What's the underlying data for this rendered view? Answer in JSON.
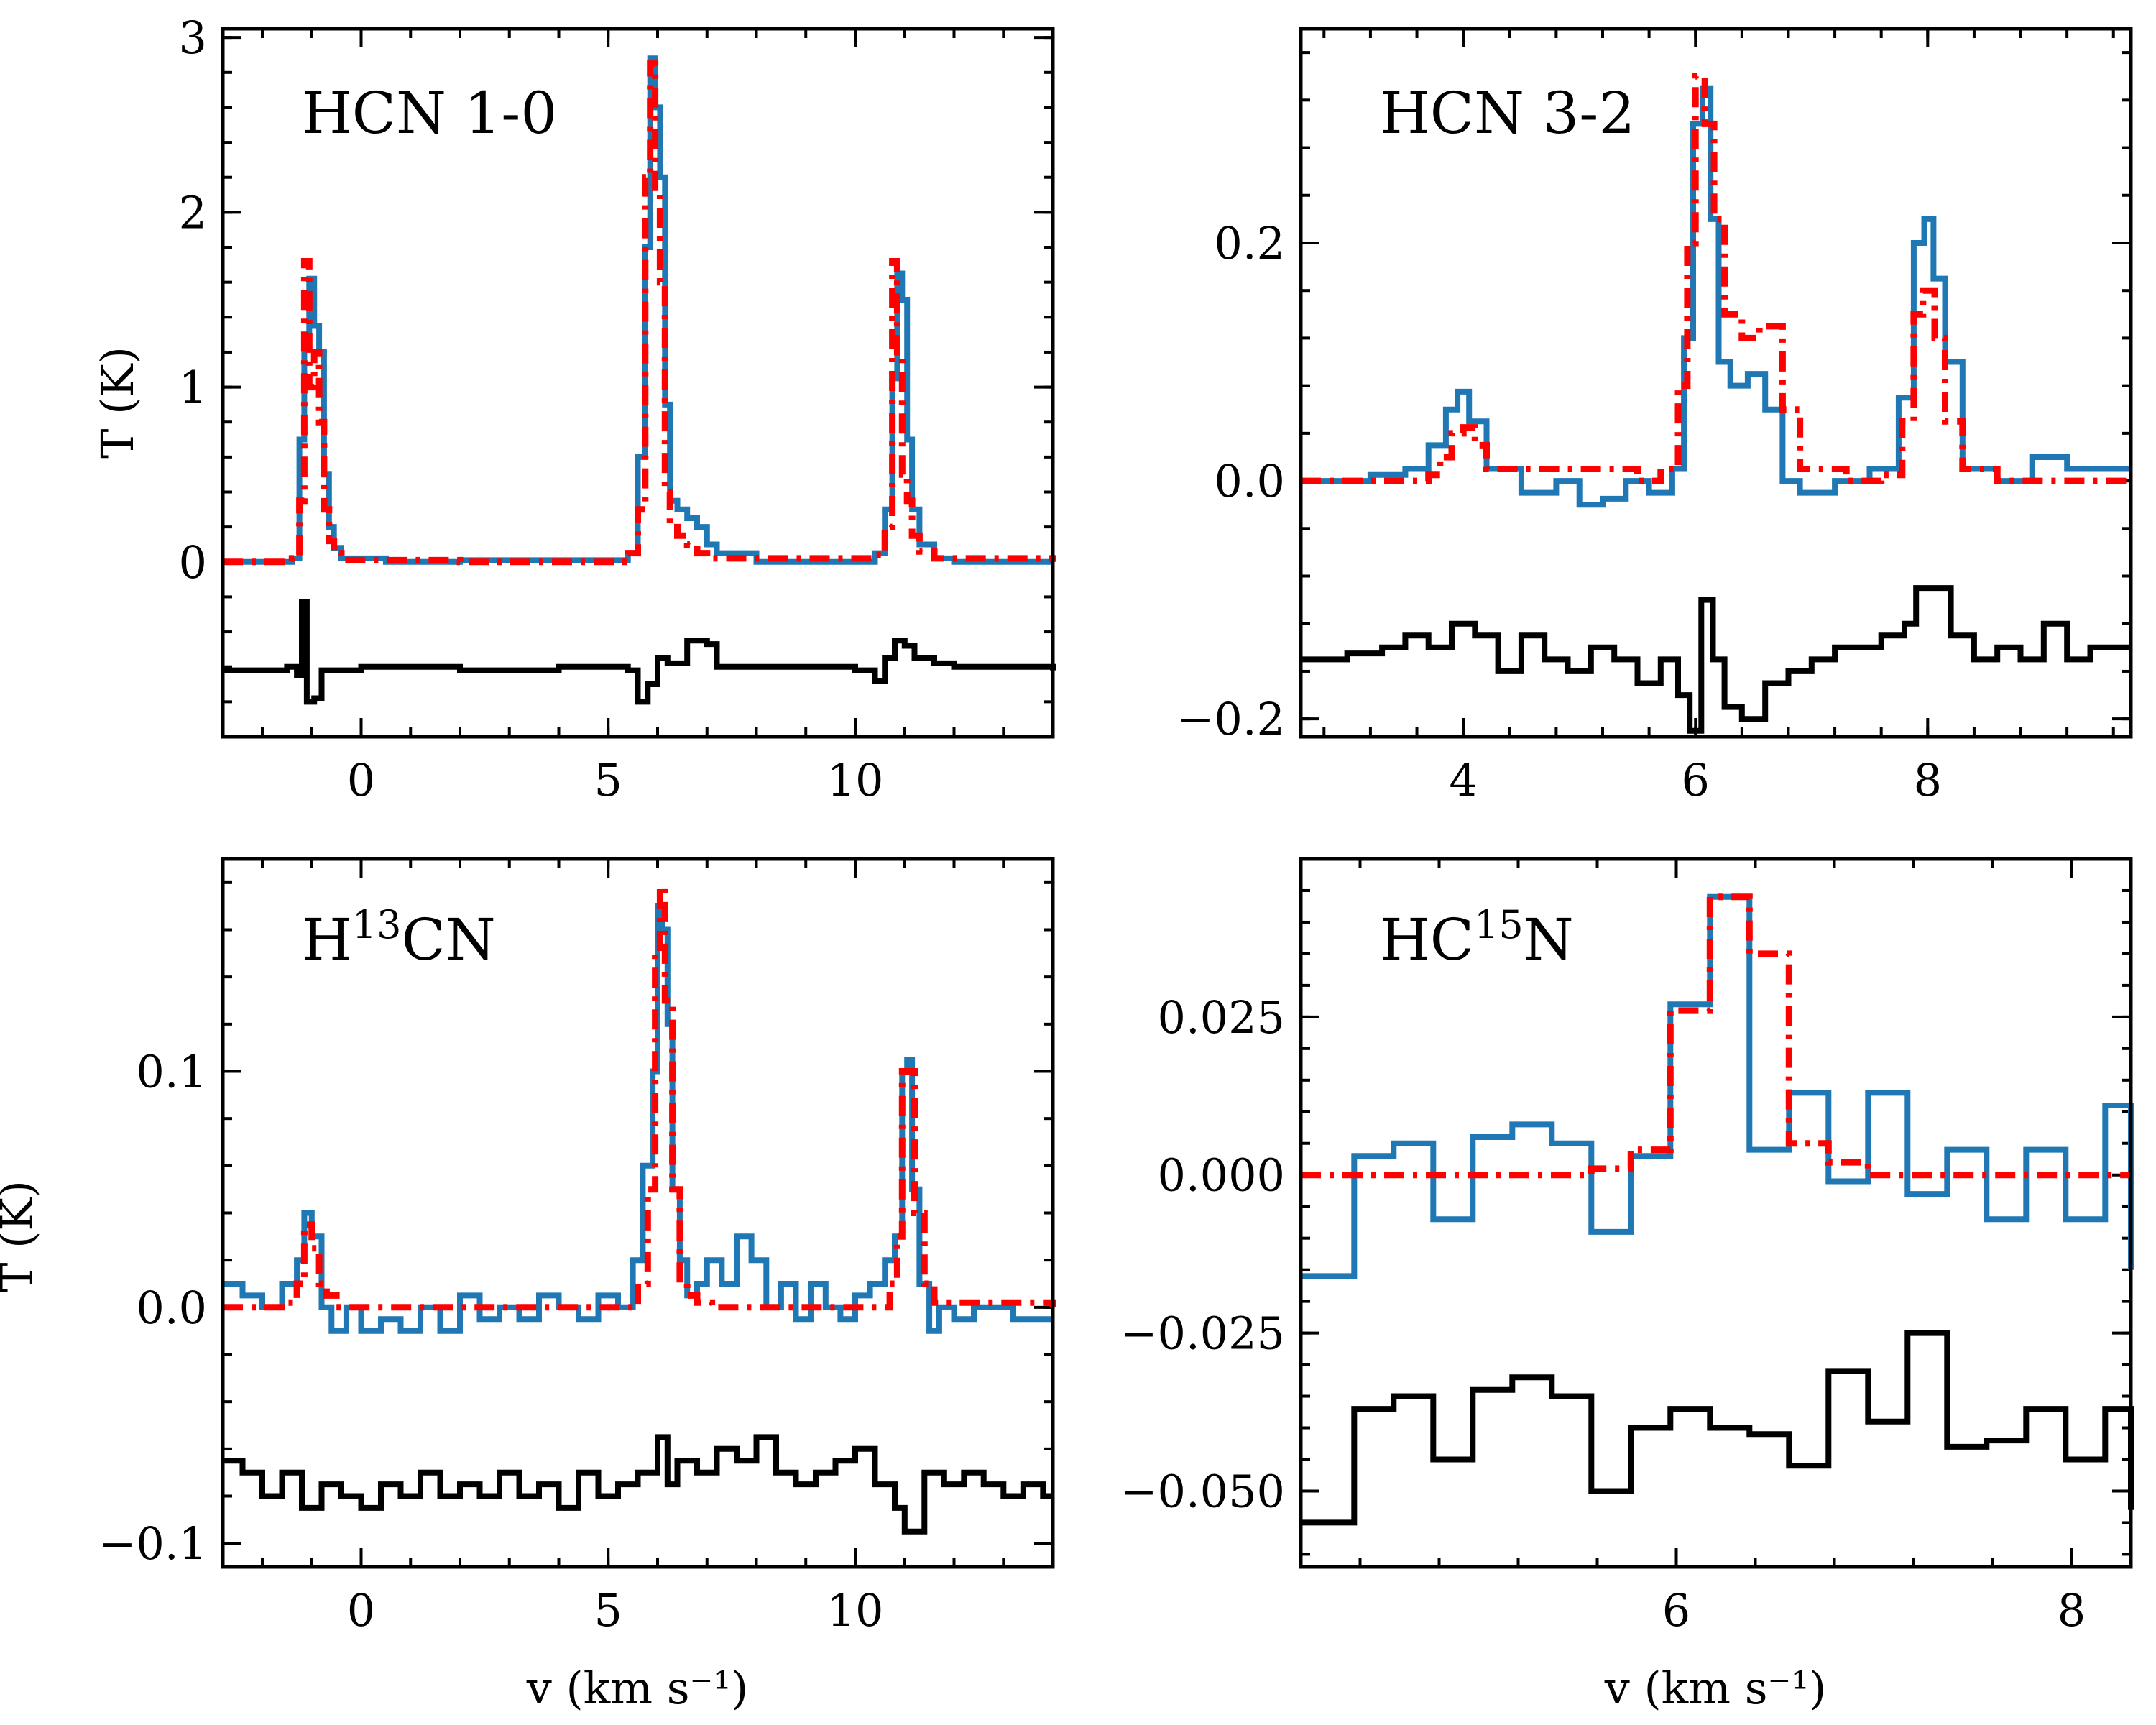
{
  "colors": {
    "observed": "#1f77b4",
    "model": "#ff0000",
    "residual": "#000000"
  },
  "chart_data": [
    {
      "type": "line",
      "name": "hcn10",
      "title": "HCN 1-0",
      "title_sup": "",
      "title_tail": "",
      "xlabel": "",
      "ylabel": "T (K)",
      "xlim": [
        -2.8,
        14.0
      ],
      "ylim": [
        -1.0,
        3.05
      ],
      "xticks": [
        {
          "v": 0,
          "label": "0"
        },
        {
          "v": 5,
          "label": "5"
        },
        {
          "v": 10,
          "label": "10"
        }
      ],
      "yticks": [
        {
          "v": 0,
          "label": "0"
        },
        {
          "v": 1,
          "label": "1"
        },
        {
          "v": 2,
          "label": "2"
        },
        {
          "v": 3,
          "label": "3"
        }
      ],
      "series": [
        {
          "name": "observed",
          "style": "steps-solid",
          "x": [
            -2.8,
            -1.4,
            -1.25,
            -1.15,
            -1.05,
            -0.95,
            -0.85,
            -0.75,
            -0.65,
            -0.55,
            -0.4,
            0.5,
            2,
            3,
            4,
            5.4,
            5.6,
            5.75,
            5.85,
            5.95,
            6.05,
            6.15,
            6.25,
            6.4,
            6.6,
            6.8,
            7.0,
            7.2,
            8,
            9,
            10,
            10.4,
            10.6,
            10.75,
            10.85,
            10.95,
            11.05,
            11.15,
            11.3,
            11.6,
            12,
            13,
            14.0
          ],
          "y": [
            0,
            0.02,
            0.7,
            1.3,
            1.62,
            1.35,
            1.2,
            0.5,
            0.2,
            0.08,
            0.02,
            0,
            0.01,
            0.01,
            0.01,
            0.05,
            0.6,
            1.8,
            2.88,
            2.6,
            2.2,
            0.9,
            0.35,
            0.3,
            0.25,
            0.2,
            0.1,
            0.05,
            0,
            0,
            0,
            0.05,
            0.3,
            1.05,
            1.65,
            1.5,
            0.7,
            0.3,
            0.1,
            0.02,
            0,
            0,
            0
          ]
        },
        {
          "name": "model",
          "style": "steps-dashdot",
          "x": [
            -2.8,
            -1.4,
            -1.25,
            -1.15,
            -1.05,
            -0.95,
            -0.85,
            -0.75,
            -0.65,
            -0.55,
            -0.4,
            2,
            5.4,
            5.6,
            5.75,
            5.85,
            5.95,
            6.05,
            6.15,
            6.25,
            6.4,
            6.6,
            6.8,
            7.0,
            10.4,
            10.6,
            10.75,
            10.85,
            10.95,
            11.05,
            11.15,
            11.3,
            11.6,
            14.0
          ],
          "y": [
            0,
            0.02,
            0.35,
            1.72,
            1.0,
            1.2,
            0.8,
            0.3,
            0.12,
            0.05,
            0.01,
            0,
            0.05,
            0.3,
            2.2,
            2.85,
            2.1,
            1.6,
            0.4,
            0.22,
            0.15,
            0.1,
            0.05,
            0.02,
            0.04,
            0.2,
            1.72,
            1.2,
            0.5,
            0.35,
            0.15,
            0.06,
            0.02,
            0
          ]
        },
        {
          "name": "residual",
          "style": "steps-solid",
          "x": [
            -2.8,
            -1.5,
            -1.3,
            -1.2,
            -1.1,
            -0.95,
            -0.8,
            0,
            2,
            4,
            5.4,
            5.6,
            5.8,
            6.0,
            6.2,
            6.6,
            7.0,
            7.2,
            8,
            10,
            10.4,
            10.6,
            10.8,
            11.0,
            11.2,
            11.6,
            12.0,
            14.0
          ],
          "y": [
            -0.62,
            -0.6,
            -0.65,
            -0.23,
            -0.8,
            -0.78,
            -0.62,
            -0.6,
            -0.62,
            -0.6,
            -0.62,
            -0.8,
            -0.7,
            -0.55,
            -0.58,
            -0.45,
            -0.47,
            -0.6,
            -0.6,
            -0.62,
            -0.68,
            -0.55,
            -0.45,
            -0.48,
            -0.55,
            -0.58,
            -0.6,
            -0.62
          ]
        }
      ]
    },
    {
      "type": "line",
      "name": "hcn32",
      "title": "HCN 3-2",
      "title_sup": "",
      "title_tail": "",
      "xlabel": "",
      "ylabel": "",
      "xlim": [
        2.6,
        9.75
      ],
      "ylim": [
        -0.215,
        0.38
      ],
      "xticks": [
        {
          "v": 4,
          "label": "4"
        },
        {
          "v": 6,
          "label": "6"
        },
        {
          "v": 8,
          "label": "8"
        }
      ],
      "yticks": [
        {
          "v": -0.2,
          "label": "−0.2"
        },
        {
          "v": 0.0,
          "label": "0.0"
        },
        {
          "v": 0.2,
          "label": "0.2"
        }
      ],
      "series": [
        {
          "name": "observed",
          "style": "steps-solid",
          "x": [
            2.6,
            3.2,
            3.5,
            3.7,
            3.85,
            3.95,
            4.05,
            4.2,
            4.5,
            4.8,
            5.0,
            5.2,
            5.4,
            5.6,
            5.8,
            5.9,
            5.98,
            6.06,
            6.13,
            6.2,
            6.3,
            6.45,
            6.6,
            6.75,
            6.9,
            7.2,
            7.5,
            7.75,
            7.88,
            7.97,
            8.05,
            8.15,
            8.3,
            8.6,
            8.9,
            9.2,
            9.75
          ],
          "y": [
            0,
            0.005,
            0.01,
            0.03,
            0.06,
            0.075,
            0.05,
            0.01,
            -0.01,
            0.0,
            -0.02,
            -0.015,
            0.0,
            -0.01,
            0.01,
            0.12,
            0.3,
            0.33,
            0.22,
            0.1,
            0.08,
            0.09,
            0.06,
            0.0,
            -0.01,
            0.0,
            0.01,
            0.07,
            0.2,
            0.22,
            0.17,
            0.1,
            0.01,
            0.0,
            0.02,
            0.01,
            0.01
          ]
        },
        {
          "name": "model",
          "style": "steps-dashdot",
          "x": [
            2.6,
            3.7,
            3.8,
            3.9,
            4.0,
            4.1,
            4.2,
            5.5,
            5.7,
            5.85,
            5.93,
            6.0,
            6.08,
            6.16,
            6.25,
            6.4,
            6.55,
            6.75,
            6.9,
            7.3,
            7.6,
            7.78,
            7.88,
            7.96,
            8.06,
            8.15,
            8.3,
            8.6,
            9.75
          ],
          "y": [
            0,
            0.005,
            0.02,
            0.04,
            0.045,
            0.03,
            0.01,
            0,
            0.01,
            0.08,
            0.2,
            0.34,
            0.3,
            0.22,
            0.14,
            0.12,
            0.13,
            0.06,
            0.01,
            0.0,
            0.005,
            0.05,
            0.14,
            0.16,
            0.12,
            0.05,
            0.01,
            0,
            0
          ]
        },
        {
          "name": "residual",
          "style": "steps-solid",
          "x": [
            2.6,
            3.0,
            3.3,
            3.5,
            3.7,
            3.9,
            4.1,
            4.3,
            4.5,
            4.7,
            4.9,
            5.1,
            5.3,
            5.5,
            5.7,
            5.85,
            5.95,
            6.05,
            6.15,
            6.25,
            6.4,
            6.6,
            6.8,
            7.0,
            7.2,
            7.4,
            7.6,
            7.8,
            7.9,
            8.1,
            8.2,
            8.4,
            8.6,
            8.8,
            9.0,
            9.2,
            9.4,
            9.75
          ],
          "y": [
            -0.15,
            -0.145,
            -0.14,
            -0.13,
            -0.14,
            -0.12,
            -0.13,
            -0.16,
            -0.13,
            -0.15,
            -0.16,
            -0.14,
            -0.15,
            -0.17,
            -0.15,
            -0.18,
            -0.21,
            -0.1,
            -0.15,
            -0.19,
            -0.2,
            -0.17,
            -0.16,
            -0.15,
            -0.14,
            -0.14,
            -0.13,
            -0.12,
            -0.09,
            -0.09,
            -0.13,
            -0.15,
            -0.14,
            -0.15,
            -0.12,
            -0.15,
            -0.14,
            -0.14
          ]
        }
      ]
    },
    {
      "type": "line",
      "name": "h13cn",
      "title": "H",
      "title_sup": "13",
      "title_tail": "CN",
      "xlabel": "v (km s⁻¹)",
      "ylabel": "T (K)",
      "xlim": [
        -2.8,
        14.0
      ],
      "ylim": [
        -0.11,
        0.19
      ],
      "xticks": [
        {
          "v": 0,
          "label": "0"
        },
        {
          "v": 5,
          "label": "5"
        },
        {
          "v": 10,
          "label": "10"
        }
      ],
      "yticks": [
        {
          "v": -0.1,
          "label": "−0.1"
        },
        {
          "v": 0.0,
          "label": "0.0"
        },
        {
          "v": 0.1,
          "label": "0.1"
        }
      ],
      "series": [
        {
          "name": "observed",
          "style": "steps-solid",
          "x": [
            -2.8,
            -2.4,
            -2.0,
            -1.6,
            -1.3,
            -1.15,
            -1.0,
            -0.8,
            -0.6,
            -0.3,
            0,
            0.4,
            0.8,
            1.2,
            1.6,
            2.0,
            2.4,
            2.8,
            3.2,
            3.6,
            4.0,
            4.4,
            4.8,
            5.2,
            5.5,
            5.7,
            5.9,
            6.0,
            6.1,
            6.2,
            6.3,
            6.45,
            6.6,
            6.8,
            7.0,
            7.3,
            7.6,
            7.9,
            8.2,
            8.5,
            8.8,
            9.1,
            9.4,
            9.7,
            10.0,
            10.3,
            10.6,
            10.8,
            10.95,
            11.05,
            11.15,
            11.3,
            11.5,
            11.7,
            12.0,
            12.4,
            12.8,
            13.2,
            13.6,
            14.0
          ],
          "y": [
            0.01,
            0.005,
            0.0,
            0.01,
            0.02,
            0.04,
            0.03,
            0.0,
            -0.01,
            0.0,
            -0.01,
            -0.005,
            -0.01,
            0.0,
            -0.01,
            0.005,
            -0.005,
            0.0,
            -0.005,
            0.005,
            0.0,
            -0.005,
            0.005,
            0.0,
            0.02,
            0.06,
            0.1,
            0.17,
            0.16,
            0.12,
            0.05,
            0.02,
            0.005,
            0.01,
            0.02,
            0.01,
            0.03,
            0.02,
            0.0,
            0.01,
            -0.005,
            0.01,
            0.0,
            -0.005,
            0.005,
            0.01,
            0.02,
            0.03,
            0.1,
            0.105,
            0.05,
            0.01,
            -0.01,
            0.0,
            -0.005,
            0.0,
            0.0,
            -0.005,
            -0.005,
            -0.005
          ]
        },
        {
          "name": "model",
          "style": "steps-dashdot",
          "x": [
            -2.8,
            -1.5,
            -1.3,
            -1.15,
            -1.0,
            -0.85,
            -0.7,
            -0.5,
            5.4,
            5.6,
            5.8,
            5.95,
            6.05,
            6.15,
            6.3,
            6.45,
            6.6,
            6.8,
            7.1,
            10.5,
            10.7,
            10.85,
            10.95,
            11.05,
            11.2,
            11.4,
            11.6,
            14.0
          ],
          "y": [
            0,
            0.002,
            0.01,
            0.035,
            0.025,
            0.01,
            0.005,
            0,
            0,
            0.01,
            0.05,
            0.15,
            0.178,
            0.13,
            0.05,
            0.01,
            0.005,
            0.002,
            0,
            0,
            0.01,
            0.03,
            0.1,
            0.1,
            0.04,
            0.01,
            0.002,
            0
          ]
        },
        {
          "name": "residual",
          "style": "steps-solid",
          "x": [
            -2.8,
            -2.4,
            -2.0,
            -1.6,
            -1.2,
            -0.8,
            -0.4,
            0,
            0.4,
            0.8,
            1.2,
            1.6,
            2.0,
            2.4,
            2.8,
            3.2,
            3.6,
            4.0,
            4.4,
            4.8,
            5.2,
            5.6,
            6.0,
            6.2,
            6.4,
            6.8,
            7.2,
            7.6,
            8.0,
            8.4,
            8.8,
            9.2,
            9.6,
            10.0,
            10.4,
            10.8,
            11.0,
            11.4,
            11.8,
            12.2,
            12.6,
            13.0,
            13.4,
            13.8,
            14.0
          ],
          "y": [
            -0.065,
            -0.07,
            -0.08,
            -0.07,
            -0.085,
            -0.075,
            -0.08,
            -0.085,
            -0.075,
            -0.08,
            -0.07,
            -0.08,
            -0.075,
            -0.08,
            -0.07,
            -0.08,
            -0.075,
            -0.085,
            -0.07,
            -0.08,
            -0.075,
            -0.07,
            -0.055,
            -0.075,
            -0.065,
            -0.07,
            -0.06,
            -0.065,
            -0.055,
            -0.07,
            -0.075,
            -0.07,
            -0.065,
            -0.06,
            -0.075,
            -0.085,
            -0.095,
            -0.07,
            -0.075,
            -0.07,
            -0.075,
            -0.08,
            -0.075,
            -0.08,
            -0.08
          ]
        }
      ]
    },
    {
      "type": "line",
      "name": "hc15n",
      "title": "HC",
      "title_sup": "15",
      "title_tail": "N",
      "xlabel": "v (km s⁻¹)",
      "ylabel": "",
      "xlim": [
        4.1,
        8.3
      ],
      "ylim": [
        -0.062,
        0.05
      ],
      "xticks": [
        {
          "v": 6,
          "label": "6"
        },
        {
          "v": 8,
          "label": "8"
        }
      ],
      "yticks": [
        {
          "v": -0.05,
          "label": "−0.050"
        },
        {
          "v": -0.025,
          "label": "−0.025"
        },
        {
          "v": 0.0,
          "label": "0.000"
        },
        {
          "v": 0.025,
          "label": "0.025"
        }
      ],
      "series": [
        {
          "name": "observed",
          "style": "steps-solid",
          "x": [
            4.1,
            4.37,
            4.57,
            4.77,
            4.97,
            5.17,
            5.37,
            5.57,
            5.77,
            5.97,
            6.17,
            6.37,
            6.57,
            6.77,
            6.97,
            7.17,
            7.37,
            7.57,
            7.77,
            7.97,
            8.17,
            8.3
          ],
          "y": [
            -0.016,
            0.003,
            0.005,
            -0.007,
            0.006,
            0.008,
            0.005,
            -0.009,
            0.003,
            0.027,
            0.044,
            0.004,
            0.013,
            -0.001,
            0.013,
            -0.003,
            0.004,
            -0.007,
            0.004,
            -0.007,
            0.011,
            -0.015
          ]
        },
        {
          "name": "model",
          "style": "steps-dashdot",
          "x": [
            4.1,
            5.57,
            5.77,
            5.97,
            6.17,
            6.37,
            6.57,
            6.77,
            6.97,
            7.17,
            8.3
          ],
          "y": [
            0.0,
            0.001,
            0.004,
            0.026,
            0.044,
            0.035,
            0.005,
            0.002,
            0.0,
            0.0,
            0.0
          ]
        },
        {
          "name": "residual",
          "style": "steps-solid",
          "x": [
            4.1,
            4.37,
            4.57,
            4.77,
            4.97,
            5.17,
            5.37,
            5.57,
            5.77,
            5.97,
            6.17,
            6.37,
            6.57,
            6.77,
            6.97,
            7.17,
            7.37,
            7.57,
            7.77,
            7.97,
            8.17,
            8.3
          ],
          "y": [
            -0.055,
            -0.037,
            -0.035,
            -0.045,
            -0.034,
            -0.032,
            -0.035,
            -0.05,
            -0.04,
            -0.037,
            -0.04,
            -0.041,
            -0.046,
            -0.031,
            -0.039,
            -0.025,
            -0.043,
            -0.042,
            -0.037,
            -0.045,
            -0.037,
            -0.053
          ]
        }
      ]
    }
  ]
}
